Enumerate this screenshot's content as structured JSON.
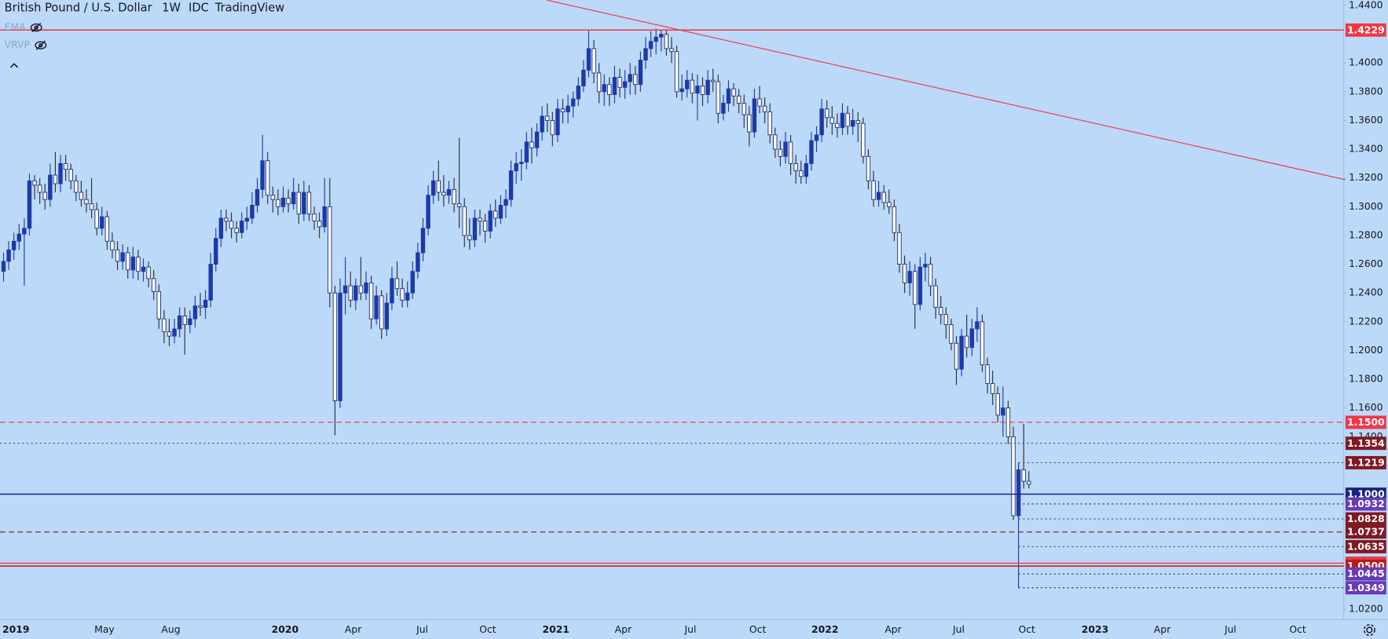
{
  "header": {
    "title": "British Pound / U.S. Dollar",
    "interval": "1W",
    "source": "IDC",
    "brand": "TradingView",
    "indicators": [
      "EMA",
      "VRVP"
    ]
  },
  "chart_data": {
    "type": "candlestick",
    "up_color": "#1c3aa9",
    "down_color": "#ffffff",
    "wick_color": "#2a2e39",
    "ylim": [
      1.0129,
      1.4437
    ],
    "yticks": [
      {
        "value": 1.44,
        "label": "1.4400"
      },
      {
        "value": 1.4,
        "label": "1.4000"
      },
      {
        "value": 1.38,
        "label": "1.3800"
      },
      {
        "value": 1.36,
        "label": "1.3600"
      },
      {
        "value": 1.34,
        "label": "1.3400"
      },
      {
        "value": 1.32,
        "label": "1.3200"
      },
      {
        "value": 1.3,
        "label": "1.3000"
      },
      {
        "value": 1.28,
        "label": "1.2800"
      },
      {
        "value": 1.26,
        "label": "1.2600"
      },
      {
        "value": 1.24,
        "label": "1.2400"
      },
      {
        "value": 1.22,
        "label": "1.2200"
      },
      {
        "value": 1.2,
        "label": "1.2000"
      },
      {
        "value": 1.18,
        "label": "1.1800"
      },
      {
        "value": 1.16,
        "label": "1.1600"
      },
      {
        "value": 1.14,
        "label": "1.1400"
      },
      {
        "value": 1.02,
        "label": "1.0200"
      }
    ],
    "x_labels": [
      "2019",
      "May",
      "Aug",
      "2020",
      "Apr",
      "Jul",
      "Oct",
      "2021",
      "Apr",
      "Jul",
      "Oct",
      "2022",
      "Apr",
      "Jul",
      "Oct",
      "2023",
      "Apr",
      "Jul",
      "Oct"
    ],
    "levels": [
      {
        "value": 1.4229,
        "label": "1.4229",
        "color": "#f23645",
        "style": "solid",
        "full": true
      },
      {
        "value": 1.15,
        "label": "1.1500",
        "color": "#f23645",
        "style": "dashed",
        "full": true
      },
      {
        "value": 1.1354,
        "label": "1.1354",
        "color": "#801922",
        "style": "dotted",
        "full": true
      },
      {
        "value": 1.1219,
        "label": "1.1219",
        "color": "#801922",
        "style": "dotted",
        "full": false
      },
      {
        "value": 1.1,
        "label": "1.1000",
        "color": "#1a237e",
        "style": "solid",
        "full": true
      },
      {
        "value": 1.0932,
        "label": "1.0932",
        "color": "#673ab7",
        "style": "dotted",
        "full": false
      },
      {
        "value": 1.0828,
        "label": "1.0828",
        "color": "#801922",
        "style": "dotted",
        "full": false
      },
      {
        "value": 1.0737,
        "label": "1.0737",
        "color": "#801922",
        "style": "dashed",
        "full": true
      },
      {
        "value": 1.0635,
        "label": "1.0635",
        "color": "#801922",
        "style": "dotted",
        "full": false
      },
      {
        "value": 1.052,
        "label": "1.0520",
        "color": "#f23645",
        "style": "solid",
        "full": true
      },
      {
        "value": 1.05,
        "label": "1.0500",
        "color": "#b71c1c",
        "style": "solid",
        "full": true
      },
      {
        "value": 1.0445,
        "label": "1.0445",
        "color": "#673ab7",
        "style": "dotted",
        "full": false
      },
      {
        "value": 1.0349,
        "label": "1.0349",
        "color": "#673ab7",
        "style": "dotted",
        "full": false
      }
    ],
    "ohlc": [
      [
        1.255,
        1.268,
        1.248,
        1.262
      ],
      [
        1.262,
        1.276,
        1.256,
        1.27
      ],
      [
        1.27,
        1.282,
        1.263,
        1.276
      ],
      [
        1.276,
        1.288,
        1.27,
        1.281
      ],
      [
        1.281,
        1.292,
        1.245,
        1.285
      ],
      [
        1.285,
        1.323,
        1.28,
        1.318
      ],
      [
        1.318,
        1.322,
        1.305,
        1.315
      ],
      [
        1.315,
        1.32,
        1.302,
        1.31
      ],
      [
        1.31,
        1.316,
        1.298,
        1.305
      ],
      [
        1.305,
        1.33,
        1.3,
        1.322
      ],
      [
        1.322,
        1.338,
        1.31,
        1.316
      ],
      [
        1.316,
        1.336,
        1.31,
        1.33
      ],
      [
        1.33,
        1.336,
        1.318,
        1.326
      ],
      [
        1.326,
        1.33,
        1.312,
        1.318
      ],
      [
        1.318,
        1.322,
        1.304,
        1.31
      ],
      [
        1.31,
        1.318,
        1.3,
        1.305
      ],
      [
        1.305,
        1.312,
        1.296,
        1.302
      ],
      [
        1.302,
        1.32,
        1.292,
        1.298
      ],
      [
        1.298,
        1.303,
        1.28,
        1.285
      ],
      [
        1.285,
        1.3,
        1.28,
        1.293
      ],
      [
        1.293,
        1.297,
        1.27,
        1.276
      ],
      [
        1.276,
        1.282,
        1.264,
        1.27
      ],
      [
        1.27,
        1.276,
        1.256,
        1.262
      ],
      [
        1.262,
        1.274,
        1.256,
        1.268
      ],
      [
        1.268,
        1.272,
        1.25,
        1.256
      ],
      [
        1.256,
        1.272,
        1.25,
        1.265
      ],
      [
        1.265,
        1.27,
        1.249,
        1.255
      ],
      [
        1.255,
        1.264,
        1.248,
        1.258
      ],
      [
        1.258,
        1.262,
        1.244,
        1.25
      ],
      [
        1.25,
        1.256,
        1.235,
        1.241
      ],
      [
        1.241,
        1.246,
        1.215,
        1.222
      ],
      [
        1.222,
        1.228,
        1.205,
        1.213
      ],
      [
        1.213,
        1.222,
        1.203,
        1.21
      ],
      [
        1.21,
        1.222,
        1.205,
        1.215
      ],
      [
        1.215,
        1.23,
        1.209,
        1.224
      ],
      [
        1.224,
        1.23,
        1.197,
        1.218
      ],
      [
        1.218,
        1.228,
        1.212,
        1.222
      ],
      [
        1.222,
        1.238,
        1.216,
        1.231
      ],
      [
        1.231,
        1.24,
        1.224,
        1.23
      ],
      [
        1.23,
        1.242,
        1.222,
        1.235
      ],
      [
        1.235,
        1.268,
        1.23,
        1.26
      ],
      [
        1.26,
        1.285,
        1.255,
        1.278
      ],
      [
        1.278,
        1.298,
        1.272,
        1.292
      ],
      [
        1.292,
        1.298,
        1.283,
        1.29
      ],
      [
        1.29,
        1.296,
        1.278,
        1.285
      ],
      [
        1.285,
        1.29,
        1.275,
        1.282
      ],
      [
        1.282,
        1.296,
        1.278,
        1.29
      ],
      [
        1.29,
        1.3,
        1.284,
        1.292
      ],
      [
        1.292,
        1.31,
        1.288,
        1.301
      ],
      [
        1.301,
        1.32,
        1.296,
        1.312
      ],
      [
        1.312,
        1.35,
        1.306,
        1.332
      ],
      [
        1.332,
        1.338,
        1.302,
        1.308
      ],
      [
        1.308,
        1.314,
        1.296,
        1.305
      ],
      [
        1.305,
        1.312,
        1.294,
        1.3
      ],
      [
        1.3,
        1.314,
        1.296,
        1.306
      ],
      [
        1.306,
        1.312,
        1.296,
        1.302
      ],
      [
        1.302,
        1.32,
        1.298,
        1.31
      ],
      [
        1.31,
        1.316,
        1.288,
        1.295
      ],
      [
        1.295,
        1.318,
        1.29,
        1.31
      ],
      [
        1.31,
        1.315,
        1.29,
        1.295
      ],
      [
        1.295,
        1.3,
        1.284,
        1.29
      ],
      [
        1.29,
        1.296,
        1.278,
        1.286
      ],
      [
        1.286,
        1.32,
        1.282,
        1.3
      ],
      [
        1.3,
        1.32,
        1.23,
        1.24
      ],
      [
        1.24,
        1.245,
        1.141,
        1.165
      ],
      [
        1.165,
        1.25,
        1.16,
        1.24
      ],
      [
        1.24,
        1.265,
        1.225,
        1.245
      ],
      [
        1.245,
        1.255,
        1.23,
        1.235
      ],
      [
        1.235,
        1.25,
        1.228,
        1.245
      ],
      [
        1.245,
        1.265,
        1.235,
        1.24
      ],
      [
        1.24,
        1.255,
        1.235,
        1.247
      ],
      [
        1.247,
        1.252,
        1.215,
        1.222
      ],
      [
        1.222,
        1.245,
        1.218,
        1.238
      ],
      [
        1.238,
        1.242,
        1.208,
        1.215
      ],
      [
        1.215,
        1.24,
        1.21,
        1.233
      ],
      [
        1.233,
        1.258,
        1.228,
        1.25
      ],
      [
        1.25,
        1.262,
        1.238,
        1.243
      ],
      [
        1.243,
        1.25,
        1.23,
        1.235
      ],
      [
        1.235,
        1.248,
        1.23,
        1.24
      ],
      [
        1.24,
        1.262,
        1.236,
        1.255
      ],
      [
        1.255,
        1.275,
        1.25,
        1.268
      ],
      [
        1.268,
        1.292,
        1.262,
        1.285
      ],
      [
        1.285,
        1.315,
        1.28,
        1.308
      ],
      [
        1.308,
        1.325,
        1.302,
        1.318
      ],
      [
        1.318,
        1.332,
        1.304,
        1.31
      ],
      [
        1.31,
        1.322,
        1.3,
        1.308
      ],
      [
        1.308,
        1.318,
        1.302,
        1.312
      ],
      [
        1.312,
        1.32,
        1.296,
        1.302
      ],
      [
        1.302,
        1.348,
        1.285,
        1.3
      ],
      [
        1.3,
        1.306,
        1.272,
        1.28
      ],
      [
        1.28,
        1.292,
        1.27,
        1.277
      ],
      [
        1.277,
        1.298,
        1.272,
        1.292
      ],
      [
        1.292,
        1.298,
        1.28,
        1.29
      ],
      [
        1.29,
        1.295,
        1.275,
        1.283
      ],
      [
        1.283,
        1.302,
        1.278,
        1.297
      ],
      [
        1.297,
        1.305,
        1.286,
        1.292
      ],
      [
        1.292,
        1.308,
        1.288,
        1.301
      ],
      [
        1.301,
        1.312,
        1.292,
        1.305
      ],
      [
        1.305,
        1.332,
        1.3,
        1.325
      ],
      [
        1.325,
        1.338,
        1.316,
        1.33
      ],
      [
        1.33,
        1.34,
        1.318,
        1.331
      ],
      [
        1.331,
        1.352,
        1.326,
        1.345
      ],
      [
        1.345,
        1.355,
        1.33,
        1.341
      ],
      [
        1.341,
        1.358,
        1.335,
        1.352
      ],
      [
        1.352,
        1.37,
        1.346,
        1.363
      ],
      [
        1.363,
        1.372,
        1.352,
        1.36
      ],
      [
        1.36,
        1.366,
        1.342,
        1.35
      ],
      [
        1.35,
        1.375,
        1.345,
        1.368
      ],
      [
        1.368,
        1.375,
        1.358,
        1.366
      ],
      [
        1.366,
        1.378,
        1.358,
        1.37
      ],
      [
        1.37,
        1.38,
        1.362,
        1.375
      ],
      [
        1.375,
        1.39,
        1.37,
        1.384
      ],
      [
        1.384,
        1.402,
        1.38,
        1.395
      ],
      [
        1.395,
        1.423,
        1.39,
        1.41
      ],
      [
        1.41,
        1.416,
        1.386,
        1.393
      ],
      [
        1.393,
        1.4,
        1.372,
        1.38
      ],
      [
        1.38,
        1.392,
        1.37,
        1.385
      ],
      [
        1.385,
        1.39,
        1.37,
        1.378
      ],
      [
        1.378,
        1.398,
        1.372,
        1.39
      ],
      [
        1.39,
        1.396,
        1.376,
        1.383
      ],
      [
        1.383,
        1.395,
        1.375,
        1.387
      ],
      [
        1.387,
        1.4,
        1.378,
        1.392
      ],
      [
        1.392,
        1.398,
        1.378,
        1.385
      ],
      [
        1.385,
        1.408,
        1.38,
        1.402
      ],
      [
        1.402,
        1.418,
        1.396,
        1.41
      ],
      [
        1.41,
        1.422,
        1.404,
        1.415
      ],
      [
        1.415,
        1.424,
        1.406,
        1.418
      ],
      [
        1.418,
        1.423,
        1.408,
        1.42
      ],
      [
        1.42,
        1.423,
        1.405,
        1.41
      ],
      [
        1.41,
        1.418,
        1.4,
        1.408
      ],
      [
        1.408,
        1.412,
        1.376,
        1.38
      ],
      [
        1.38,
        1.392,
        1.374,
        1.382
      ],
      [
        1.382,
        1.395,
        1.376,
        1.388
      ],
      [
        1.388,
        1.393,
        1.372,
        1.379
      ],
      [
        1.379,
        1.392,
        1.36,
        1.384
      ],
      [
        1.384,
        1.39,
        1.37,
        1.378
      ],
      [
        1.378,
        1.395,
        1.372,
        1.388
      ],
      [
        1.388,
        1.396,
        1.38,
        1.387
      ],
      [
        1.387,
        1.392,
        1.358,
        1.365
      ],
      [
        1.365,
        1.378,
        1.36,
        1.372
      ],
      [
        1.372,
        1.388,
        1.366,
        1.382
      ],
      [
        1.382,
        1.386,
        1.37,
        1.377
      ],
      [
        1.377,
        1.382,
        1.365,
        1.372
      ],
      [
        1.372,
        1.378,
        1.355,
        1.364
      ],
      [
        1.364,
        1.37,
        1.342,
        1.352
      ],
      [
        1.352,
        1.382,
        1.348,
        1.375
      ],
      [
        1.375,
        1.384,
        1.365,
        1.37
      ],
      [
        1.37,
        1.376,
        1.358,
        1.366
      ],
      [
        1.366,
        1.372,
        1.344,
        1.35
      ],
      [
        1.35,
        1.355,
        1.334,
        1.34
      ],
      [
        1.34,
        1.346,
        1.328,
        1.335
      ],
      [
        1.335,
        1.352,
        1.33,
        1.345
      ],
      [
        1.345,
        1.35,
        1.322,
        1.33
      ],
      [
        1.33,
        1.336,
        1.316,
        1.325
      ],
      [
        1.325,
        1.332,
        1.316,
        1.321
      ],
      [
        1.321,
        1.336,
        1.316,
        1.33
      ],
      [
        1.33,
        1.352,
        1.325,
        1.346
      ],
      [
        1.346,
        1.356,
        1.338,
        1.35
      ],
      [
        1.35,
        1.375,
        1.345,
        1.368
      ],
      [
        1.368,
        1.374,
        1.355,
        1.362
      ],
      [
        1.362,
        1.37,
        1.35,
        1.358
      ],
      [
        1.358,
        1.365,
        1.348,
        1.355
      ],
      [
        1.355,
        1.372,
        1.35,
        1.365
      ],
      [
        1.365,
        1.37,
        1.35,
        1.356
      ],
      [
        1.356,
        1.368,
        1.35,
        1.36
      ],
      [
        1.36,
        1.366,
        1.345,
        1.358
      ],
      [
        1.358,
        1.362,
        1.33,
        1.335
      ],
      [
        1.335,
        1.34,
        1.312,
        1.318
      ],
      [
        1.318,
        1.325,
        1.3,
        1.305
      ],
      [
        1.305,
        1.318,
        1.3,
        1.31
      ],
      [
        1.31,
        1.315,
        1.298,
        1.303
      ],
      [
        1.303,
        1.312,
        1.295,
        1.3
      ],
      [
        1.3,
        1.305,
        1.276,
        1.282
      ],
      [
        1.282,
        1.288,
        1.254,
        1.26
      ],
      [
        1.26,
        1.266,
        1.24,
        1.247
      ],
      [
        1.247,
        1.262,
        1.238,
        1.255
      ],
      [
        1.255,
        1.26,
        1.215,
        1.232
      ],
      [
        1.232,
        1.265,
        1.228,
        1.258
      ],
      [
        1.258,
        1.268,
        1.248,
        1.26
      ],
      [
        1.26,
        1.265,
        1.238,
        1.245
      ],
      [
        1.245,
        1.25,
        1.222,
        1.23
      ],
      [
        1.23,
        1.238,
        1.218,
        1.225
      ],
      [
        1.225,
        1.23,
        1.208,
        1.218
      ],
      [
        1.218,
        1.222,
        1.2,
        1.205
      ],
      [
        1.205,
        1.21,
        1.176,
        1.187
      ],
      [
        1.187,
        1.215,
        1.182,
        1.21
      ],
      [
        1.21,
        1.225,
        1.195,
        1.202
      ],
      [
        1.202,
        1.222,
        1.196,
        1.215
      ],
      [
        1.215,
        1.23,
        1.206,
        1.22
      ],
      [
        1.22,
        1.225,
        1.185,
        1.19
      ],
      [
        1.19,
        1.195,
        1.17,
        1.177
      ],
      [
        1.177,
        1.186,
        1.162,
        1.17
      ],
      [
        1.17,
        1.175,
        1.15,
        1.155
      ],
      [
        1.155,
        1.175,
        1.14,
        1.16
      ],
      [
        1.16,
        1.165,
        1.135,
        1.14
      ],
      [
        1.14,
        1.147,
        1.082,
        1.085
      ],
      [
        1.085,
        1.122,
        1.0349,
        1.117
      ],
      [
        1.117,
        1.149,
        1.104,
        1.109
      ],
      [
        1.109,
        1.116,
        1.104,
        1.107
      ]
    ]
  }
}
